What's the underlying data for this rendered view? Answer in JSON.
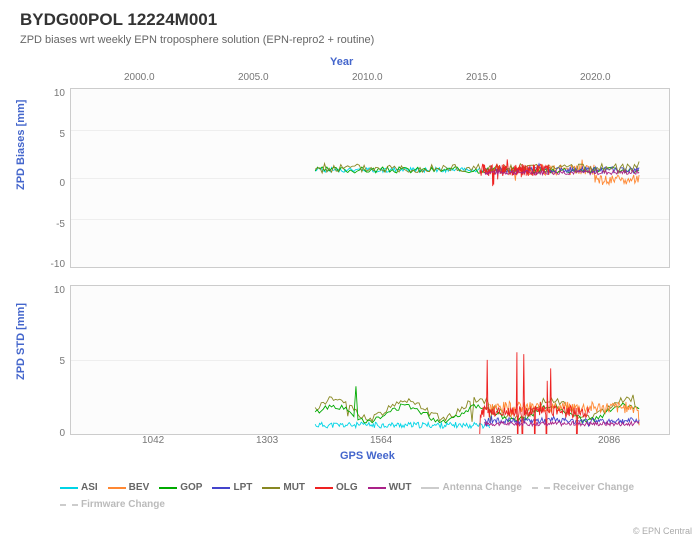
{
  "title": "BYDG00POL 12224M001",
  "subtitle": "ZPD biases wrt weekly EPN troposphere solution (EPN-repro2 + routine)",
  "top_axis": {
    "label": "Year",
    "ticks": [
      {
        "label": "2000.0",
        "pos_pct": 9
      },
      {
        "label": "2005.0",
        "pos_pct": 28
      },
      {
        "label": "2010.0",
        "pos_pct": 47
      },
      {
        "label": "2015.0",
        "pos_pct": 66
      },
      {
        "label": "2020.0",
        "pos_pct": 85
      }
    ]
  },
  "bottom_axis": {
    "label": "GPS Week",
    "ticks": [
      {
        "label": "1042",
        "pos_pct": 12
      },
      {
        "label": "1303",
        "pos_pct": 31
      },
      {
        "label": "1564",
        "pos_pct": 50
      },
      {
        "label": "1825",
        "pos_pct": 70
      },
      {
        "label": "2086",
        "pos_pct": 88
      }
    ]
  },
  "subplot1": {
    "ylabel": "ZPD Biases [mm]",
    "ylim": [
      -12,
      10
    ],
    "yticks": [
      {
        "label": "10",
        "pos_pct": 0
      },
      {
        "label": "5",
        "pos_pct": 23
      },
      {
        "label": "0",
        "pos_pct": 50
      },
      {
        "label": "-5",
        "pos_pct": 73
      },
      {
        "label": "-10",
        "pos_pct": 95
      }
    ]
  },
  "subplot2": {
    "ylabel": "ZPD STD [mm]",
    "ylim": [
      0,
      10
    ],
    "yticks": [
      {
        "label": "10",
        "pos_pct": 0
      },
      {
        "label": "5",
        "pos_pct": 50
      },
      {
        "label": "0",
        "pos_pct": 100
      }
    ]
  },
  "series": [
    {
      "name": "ASI",
      "color": "#00d4e6"
    },
    {
      "name": "BEV",
      "color": "#ff8833"
    },
    {
      "name": "GOP",
      "color": "#00aa00"
    },
    {
      "name": "LPT",
      "color": "#4444cc"
    },
    {
      "name": "MUT",
      "color": "#888822"
    },
    {
      "name": "OLG",
      "color": "#ee2222"
    },
    {
      "name": "WUT",
      "color": "#aa2288"
    }
  ],
  "aux_legend": [
    {
      "name": "Antenna Change",
      "style": "solid"
    },
    {
      "name": "Receiver Change",
      "style": "dashed"
    },
    {
      "name": "Firmware Change",
      "style": "dashed"
    }
  ],
  "credit": "© EPN Central"
}
